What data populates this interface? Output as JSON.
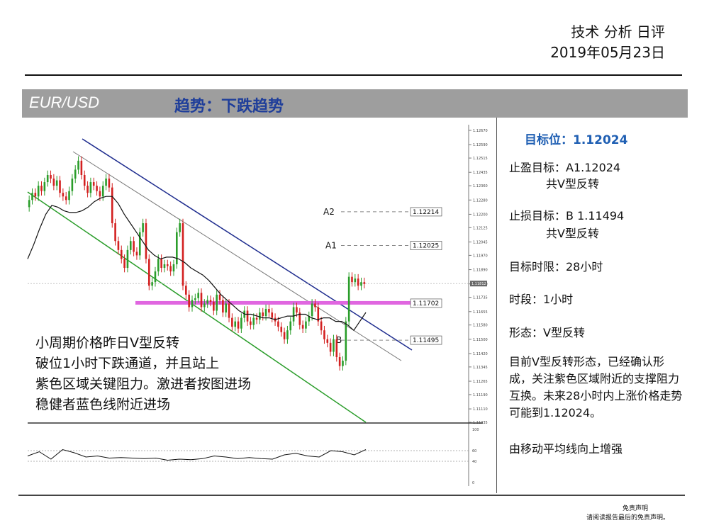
{
  "report": {
    "title": "技术 分析 日评",
    "date": "2019年05月23日"
  },
  "banner": {
    "pair": "EUR/USD",
    "trend": "趋势：下跌趋势"
  },
  "panel": {
    "target": "目标位：1.12024",
    "take_profit": "止盈目标：A1.12024",
    "take_profit_note": "共V型反转",
    "stop_loss": "止损目标：B 1.11494",
    "stop_loss_note": "共V型反转",
    "time_horizon": "目标时限：28小时",
    "timeframe": "时段：1小时",
    "pattern": "形态：V型反转",
    "summary": "目前V型反转形态，已经确认形成，关注紫色区域附近的支撑阻力互换。未来28小时内上涨价格走势可能到1.12024。",
    "indicator_note": "由移动平均线向上增强"
  },
  "chart_note": [
    "小周期价格昨日V型反转",
    "破位1小时下跌通道，并且站上",
    "紫色区域关键阻力。激进者按图进场",
    "稳健者蓝色线附近进场"
  ],
  "disclaimer": {
    "line1": "免责声明",
    "line2": "请阅读报告最后的免责声明。"
  },
  "chart_data": {
    "type": "candlestick",
    "timeframe": "1小时",
    "ylim": [
      1.11035,
      1.1267
    ],
    "y_ticks": [
      "1.12670",
      "1.12590",
      "1.12515",
      "1.12435",
      "1.12360",
      "1.12280",
      "1.12200",
      "1.12125",
      "1.12045",
      "1.11970",
      "1.11890",
      "1.11810",
      "1.11735",
      "1.11655",
      "1.11580",
      "1.11500",
      "1.11420",
      "1.11345",
      "1.11265",
      "1.11190",
      "1.11110",
      "1.11035"
    ],
    "current_price": "1.11812",
    "levels": [
      {
        "label": "A2",
        "value": 1.12214,
        "text": "1.12214"
      },
      {
        "label": "A1",
        "value": 1.12025,
        "text": "1.12025"
      },
      {
        "label": "",
        "value": 1.11702,
        "text": "1.11702",
        "color": "#e066e0"
      },
      {
        "label": "B",
        "value": 1.11495,
        "text": "1.11495"
      }
    ],
    "close": [
      1.1228,
      1.1232,
      1.123,
      1.1236,
      1.1233,
      1.1238,
      1.1242,
      1.124,
      1.1236,
      1.1239,
      1.1232,
      1.123,
      1.1228,
      1.1233,
      1.124,
      1.1245,
      1.125,
      1.1242,
      1.1236,
      1.1232,
      1.1238,
      1.1236,
      1.1233,
      1.123,
      1.1236,
      1.124,
      1.1235,
      1.1215,
      1.1205,
      1.12,
      1.1195,
      1.119,
      1.12,
      1.1205,
      1.1199,
      1.1197,
      1.121,
      1.1215,
      1.1195,
      1.118,
      1.1182,
      1.1188,
      1.1195,
      1.119,
      1.1192,
      1.1191,
      1.1188,
      1.1192,
      1.121,
      1.1215,
      1.118,
      1.1175,
      1.1168,
      1.1172,
      1.1173,
      1.1176,
      1.1168,
      1.117,
      1.1172,
      1.1171,
      1.1166,
      1.1175,
      1.1172,
      1.1165,
      1.117,
      1.1162,
      1.1157,
      1.116,
      1.1156,
      1.1162,
      1.1166,
      1.116,
      1.1158,
      1.1162,
      1.1161,
      1.1165,
      1.1163,
      1.1167,
      1.1165,
      1.1162,
      1.116,
      1.1157,
      1.1154,
      1.115,
      1.1155,
      1.116,
      1.1168,
      1.1165,
      1.1158,
      1.1156,
      1.116,
      1.1163,
      1.117,
      1.1168,
      1.116,
      1.1155,
      1.115,
      1.1148,
      1.1143,
      1.115,
      1.114,
      1.1135,
      1.1138,
      1.116,
      1.1185,
      1.1182,
      1.1184,
      1.118,
      1.1182,
      1.1181
    ],
    "ma": [
      1.1195,
      1.1203,
      1.1212,
      1.122,
      1.1225,
      1.1224,
      1.1222,
      1.1221,
      1.1221,
      1.1222,
      1.1224,
      1.1227,
      1.1229,
      1.123,
      1.123,
      1.1226,
      1.122,
      1.1215,
      1.121,
      1.1205,
      1.12,
      1.1197,
      1.1195,
      1.1196,
      1.1196,
      1.1195,
      1.1193,
      1.119,
      1.1188,
      1.1186,
      1.1183,
      1.1179,
      1.1175,
      1.1172,
      1.1169,
      1.1166,
      1.1164,
      1.1164,
      1.1163,
      1.1162,
      1.1162,
      1.1161,
      1.1162,
      1.1163,
      1.1163,
      1.1164,
      1.1164,
      1.1162,
      1.1161,
      1.1162,
      1.1162,
      1.116,
      1.116,
      1.1158,
      1.1155,
      1.116,
      1.1165
    ],
    "oscillator": {
      "levels": [
        60,
        40
      ],
      "scale": [
        100,
        0
      ],
      "values": [
        50,
        58,
        44,
        62,
        56,
        48,
        50,
        46,
        47,
        46,
        45,
        46,
        42,
        44,
        43,
        45,
        50,
        48,
        45,
        47,
        45,
        44,
        52,
        55,
        50,
        48,
        60,
        58,
        52,
        62
      ]
    }
  }
}
